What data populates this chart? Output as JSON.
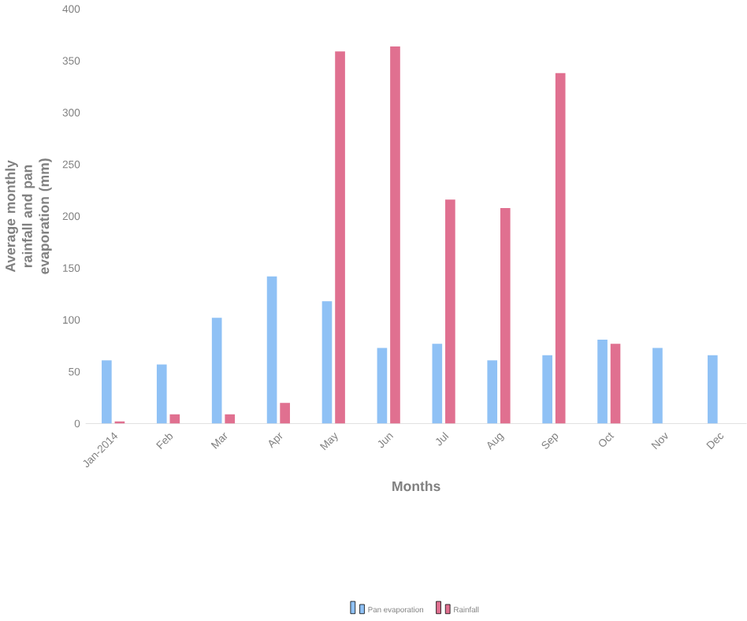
{
  "chart_data": {
    "type": "bar",
    "xlabel": "Months",
    "ylabel": "Average monthly rainfall and pan evaporation (mm)",
    "categories": [
      "Jan-2014",
      "Feb",
      "Mar",
      "Apr",
      "May",
      "Jun",
      "Jul",
      "Aug",
      "Sep",
      "Oct",
      "Nov",
      "Dec"
    ],
    "series": [
      {
        "name": "Pan evaporation",
        "color": "#8fc1f5",
        "values": [
          61,
          57,
          102,
          142,
          118,
          73,
          77,
          61,
          66,
          81,
          73,
          66
        ]
      },
      {
        "name": "Rainfall",
        "color": "#e07090",
        "values": [
          2,
          9,
          9,
          20,
          359,
          364,
          216,
          208,
          338,
          77,
          null,
          null
        ]
      }
    ],
    "ylim": [
      0,
      400
    ],
    "yticks": [
      0,
      50,
      100,
      150,
      200,
      250,
      300,
      350,
      400
    ],
    "grid": false,
    "legend": "bottom"
  }
}
